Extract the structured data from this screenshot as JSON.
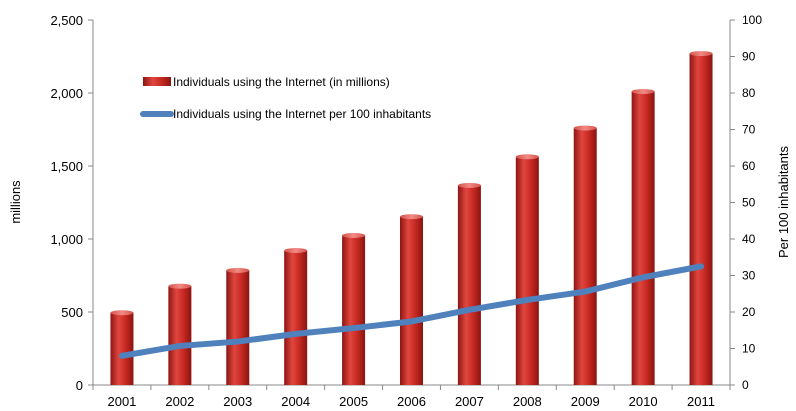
{
  "chart_data": {
    "type": "bar",
    "categories": [
      "2001",
      "2002",
      "2003",
      "2004",
      "2005",
      "2006",
      "2007",
      "2008",
      "2009",
      "2010",
      "2011"
    ],
    "series": [
      {
        "name": "Individuals using the Internet (in millions)",
        "type": "bar",
        "axis": "left",
        "color": "#c0201c",
        "values": [
          495,
          677,
          785,
          921,
          1024,
          1153,
          1367,
          1563,
          1760,
          2010,
          2270
        ]
      },
      {
        "name": "Individuals using the Internet per 100 inhabitants",
        "type": "line",
        "axis": "right",
        "color": "#4f81bd",
        "values": [
          8.0,
          10.7,
          11.9,
          14.0,
          15.6,
          17.4,
          20.6,
          23.3,
          25.6,
          29.5,
          32.5
        ]
      }
    ],
    "ylabel": "millions",
    "ylabel_right": "Per 100 inhabitants",
    "ylim": [
      0,
      2500
    ],
    "ylim_right": [
      0,
      100
    ],
    "yticks": [
      "0",
      "500",
      "1,000",
      "1,500",
      "2,000",
      "2,500"
    ],
    "yticks_right": [
      "0",
      "10",
      "20",
      "30",
      "40",
      "50",
      "60",
      "70",
      "80",
      "90",
      "100"
    ],
    "legend_position": "top-left",
    "grid": false
  }
}
